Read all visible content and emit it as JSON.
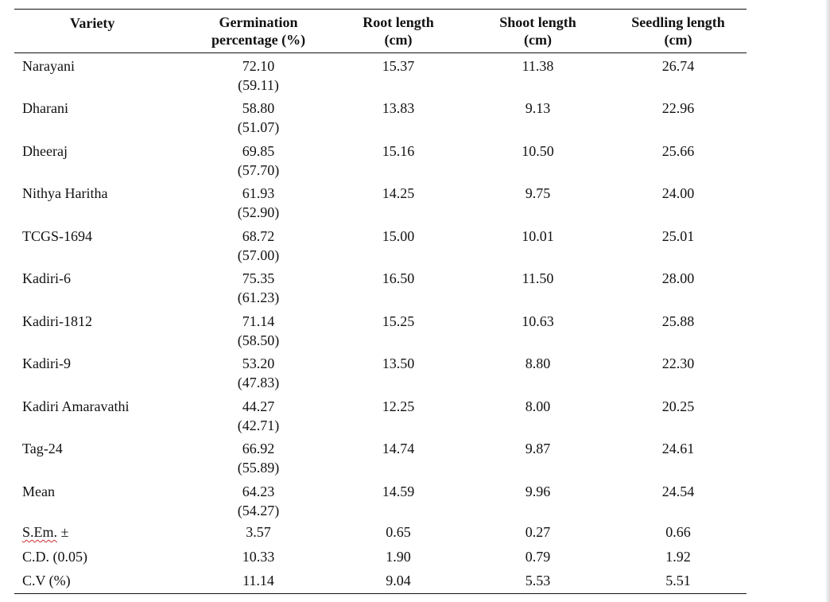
{
  "table": {
    "headers": [
      "Variety",
      "Germination percentage (%)",
      "Root length (cm)",
      "Shoot length (cm)",
      "Seedling length (cm)"
    ],
    "header_lines": {
      "germination": [
        "Germination",
        "percentage (%)"
      ],
      "root": [
        "Root length",
        "(cm)"
      ],
      "shoot": [
        "Shoot length",
        "(cm)"
      ],
      "seedling": [
        "Seedling length",
        "(cm)"
      ]
    },
    "rows": [
      {
        "variety": "Narayani",
        "germination": "72.10",
        "germination_transformed": "(59.11)",
        "root": "15.37",
        "shoot": "11.38",
        "seedling": "26.74"
      },
      {
        "variety": "Dharani",
        "germination": "58.80",
        "germination_transformed": "(51.07)",
        "root": "13.83",
        "shoot": "9.13",
        "seedling": "22.96"
      },
      {
        "variety": "Dheeraj",
        "germination": "69.85",
        "germination_transformed": "(57.70)",
        "root": "15.16",
        "shoot": "10.50",
        "seedling": "25.66"
      },
      {
        "variety": "Nithya Haritha",
        "germination": "61.93",
        "germination_transformed": "(52.90)",
        "root": "14.25",
        "shoot": "9.75",
        "seedling": "24.00"
      },
      {
        "variety": "TCGS-1694",
        "germination": "68.72",
        "germination_transformed": "(57.00)",
        "root": "15.00",
        "shoot": "10.01",
        "seedling": "25.01"
      },
      {
        "variety": "Kadiri-6",
        "germination": "75.35",
        "germination_transformed": "(61.23)",
        "root": "16.50",
        "shoot": "11.50",
        "seedling": "28.00"
      },
      {
        "variety": "Kadiri-1812",
        "germination": "71.14",
        "germination_transformed": "(58.50)",
        "root": "15.25",
        "shoot": "10.63",
        "seedling": "25.88"
      },
      {
        "variety": "Kadiri-9",
        "germination": "53.20",
        "germination_transformed": "(47.83)",
        "root": "13.50",
        "shoot": "8.80",
        "seedling": "22.30"
      },
      {
        "variety": "Kadiri Amaravathi",
        "germination": "44.27",
        "germination_transformed": "(42.71)",
        "root": "12.25",
        "shoot": "8.00",
        "seedling": "20.25"
      },
      {
        "variety": "Tag-24",
        "germination": "66.92",
        "germination_transformed": "(55.89)",
        "root": "14.74",
        "shoot": "9.87",
        "seedling": "24.61"
      },
      {
        "variety": "Mean",
        "germination": "64.23",
        "germination_transformed": "(54.27)",
        "root": "14.59",
        "shoot": "9.96",
        "seedling": "24.54"
      }
    ],
    "stats": [
      {
        "label": "S.Em. ±",
        "label_main": "S.Em.",
        "label_suffix": " ±",
        "germination": "3.57",
        "root": "0.65",
        "shoot": "0.27",
        "seedling": "0.66"
      },
      {
        "label": "C.D. (0.05)",
        "label_main": "C.D. (0.05)",
        "label_suffix": "",
        "germination": "10.33",
        "root": "1.90",
        "shoot": "0.79",
        "seedling": "1.92"
      },
      {
        "label": "C.V (%)",
        "label_main": "C.V (%)",
        "label_suffix": "",
        "germination": "11.14",
        "root": "9.04",
        "shoot": "5.53",
        "seedling": "5.51"
      }
    ]
  },
  "colors": {
    "text": "#111111",
    "rule": "#111111",
    "spellcheck_underline": "#d03030",
    "background": "#ffffff"
  }
}
